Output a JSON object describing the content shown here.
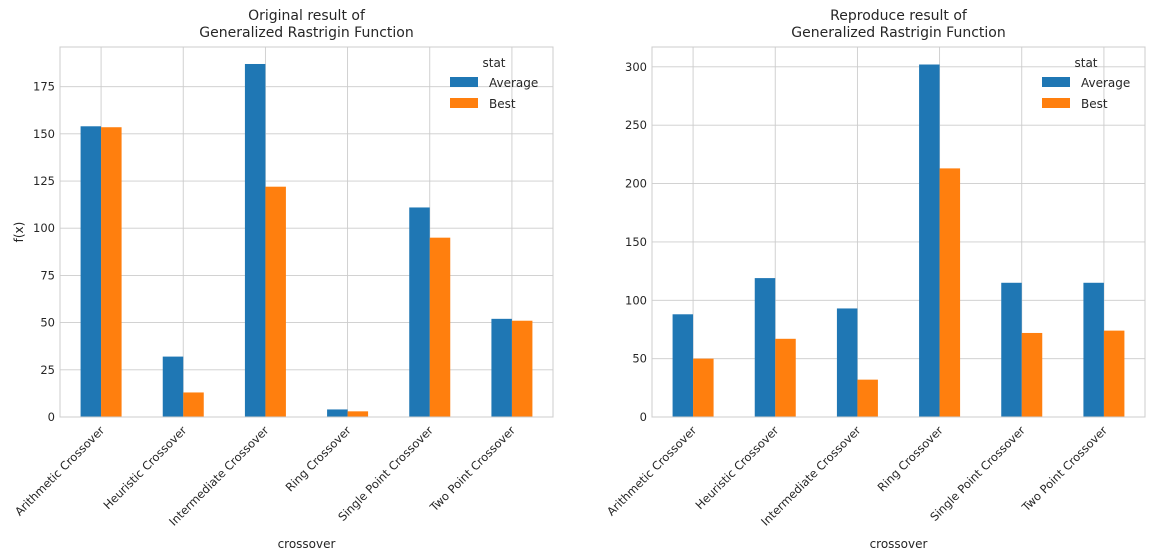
{
  "colors": {
    "average": "#1f77b4",
    "best": "#ff7f0e",
    "grid": "#cccccc"
  },
  "chart_data": [
    {
      "type": "bar",
      "title": "Original result of\nGeneralized Rastrigin Function",
      "xlabel": "crossover",
      "ylabel": "f(x)",
      "ylim": [
        0,
        196
      ],
      "yticks": [
        0,
        25,
        50,
        75,
        100,
        125,
        150,
        175
      ],
      "grid": true,
      "legend_title": "stat",
      "legend_position": "top-right",
      "categories": [
        "Arithmetic Crossover",
        "Heuristic Crossover",
        "Intermediate Crossover",
        "Ring Crossover",
        "Single Point Crossover",
        "Two Point Crossover"
      ],
      "series": [
        {
          "name": "Average",
          "values": [
            154,
            32,
            187,
            4,
            111,
            52
          ]
        },
        {
          "name": "Best",
          "values": [
            153.5,
            13,
            122,
            3,
            95,
            51
          ]
        }
      ]
    },
    {
      "type": "bar",
      "title": "Reproduce result of\nGeneralized Rastrigin Function",
      "xlabel": "crossover",
      "ylabel": "",
      "ylim": [
        0,
        317
      ],
      "yticks": [
        0,
        50,
        100,
        150,
        200,
        250,
        300
      ],
      "grid": true,
      "legend_title": "stat",
      "legend_position": "top-right",
      "categories": [
        "Arithmetic Crossover",
        "Heuristic Crossover",
        "Intermediate Crossover",
        "Ring Crossover",
        "Single Point Crossover",
        "Two Point Crossover"
      ],
      "series": [
        {
          "name": "Average",
          "values": [
            88,
            119,
            93,
            302,
            115,
            115
          ]
        },
        {
          "name": "Best",
          "values": [
            50,
            67,
            32,
            213,
            72,
            74
          ]
        }
      ]
    }
  ]
}
